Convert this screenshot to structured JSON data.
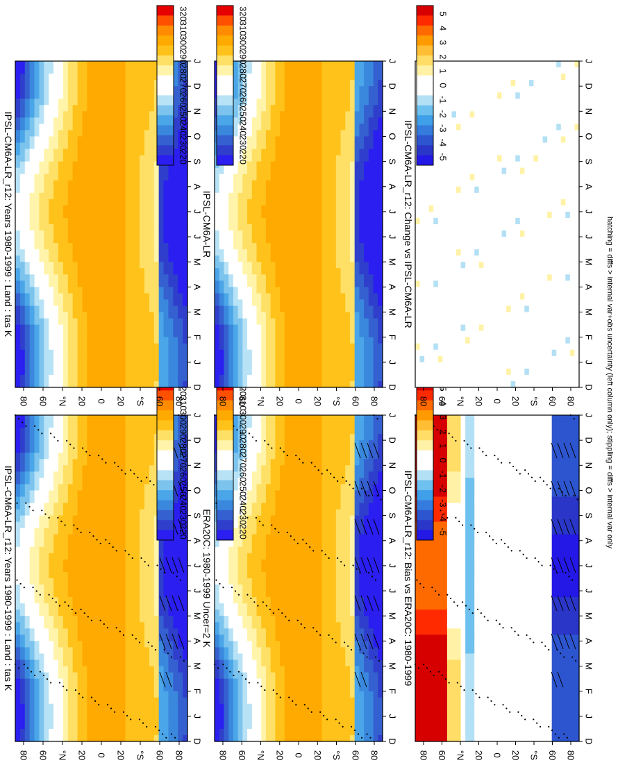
{
  "figure": {
    "footnote": "hatching = diffs > internal var+obs uncertainty (left column only); stippling = diffs > internal var only"
  },
  "chart_data": [
    {
      "id": "model-left",
      "type": "heatmap",
      "title": "IPSL-CM6A-LR_r12: Years 1980-1999 : Land : tas K",
      "x": [
        "D",
        "J",
        "F",
        "M",
        "A",
        "M",
        "J",
        "J",
        "A",
        "S",
        "O",
        "N",
        "D",
        "J"
      ],
      "y": [
        "80",
        "60",
        "°N",
        "20",
        "0",
        "20",
        "°S",
        "60",
        "80"
      ],
      "colorbar_levels": [
        "320",
        "310",
        "300",
        "290",
        "280",
        "270",
        "260",
        "250",
        "240",
        "230",
        "220"
      ],
      "hatching": true,
      "stippling": true
    },
    {
      "id": "model-right",
      "type": "heatmap",
      "title": "IPSL-CM6A-LR_r12: Years 1980-1999 : Land : tas K",
      "x": [
        "D",
        "J",
        "F",
        "M",
        "A",
        "M",
        "J",
        "J",
        "A",
        "S",
        "O",
        "N",
        "D",
        "J"
      ],
      "y": [
        "80",
        "60",
        "°N",
        "20",
        "0",
        "20",
        "°S",
        "60",
        "80"
      ],
      "colorbar_levels": [
        "320",
        "310",
        "300",
        "290",
        "280",
        "270",
        "260",
        "250",
        "240",
        "230",
        "220"
      ],
      "hatching": false,
      "stippling": false
    },
    {
      "id": "obs-left",
      "type": "heatmap",
      "title": "ERA20C: 1980-1999 Uncer=2 K",
      "x": [
        "D",
        "J",
        "F",
        "M",
        "A",
        "M",
        "J",
        "J",
        "A",
        "S",
        "O",
        "N",
        "D",
        "J"
      ],
      "y": [
        "80",
        "60",
        "°N",
        "20",
        "0",
        "20",
        "°S",
        "60",
        "80"
      ],
      "colorbar_levels": [
        "320",
        "310",
        "300",
        "290",
        "280",
        "270",
        "260",
        "250",
        "240",
        "230",
        "220"
      ],
      "hatching": true,
      "stippling": true
    },
    {
      "id": "ref-right",
      "type": "heatmap",
      "title": "IPSL-CM6A-LR",
      "x": [
        "D",
        "J",
        "F",
        "M",
        "A",
        "M",
        "J",
        "J",
        "A",
        "S",
        "O",
        "N",
        "D",
        "J"
      ],
      "y": [
        "80",
        "60",
        "°N",
        "20",
        "0",
        "20",
        "°S",
        "60",
        "80"
      ],
      "colorbar_levels": [
        "320",
        "310",
        "300",
        "290",
        "280",
        "270",
        "260",
        "250",
        "240",
        "230",
        "220"
      ],
      "hatching": false,
      "stippling": false
    },
    {
      "id": "bias-left",
      "type": "heatmap",
      "title": "IPSL-CM6A-LR_r12: Bias vs ERA20C: 1980-1999",
      "x": [
        "D",
        "J",
        "F",
        "M",
        "A",
        "M",
        "J",
        "J",
        "A",
        "S",
        "O",
        "N",
        "D",
        "J"
      ],
      "y": [
        "80",
        "60",
        "°N",
        "20",
        "0",
        "20",
        "°S",
        "60",
        "80"
      ],
      "colorbar_levels": [
        "5",
        "4",
        "3",
        "2",
        "1",
        "0",
        "-1",
        "-2",
        "-3",
        "-4",
        "-5"
      ],
      "hatching": true,
      "stippling": true
    },
    {
      "id": "change-right",
      "type": "heatmap",
      "title": "IPSL-CM6A-LR_r12: Change vs IPSL-CM6A-LR",
      "x": [
        "D",
        "J",
        "F",
        "M",
        "A",
        "M",
        "J",
        "J",
        "A",
        "S",
        "O",
        "N",
        "D",
        "J"
      ],
      "y": [
        "80",
        "60",
        "°N",
        "20",
        "0",
        "20",
        "°S",
        "60",
        "80"
      ],
      "colorbar_levels": [
        "5",
        "4",
        "3",
        "2",
        "1",
        "0",
        "-1",
        "-2",
        "-3",
        "-4",
        "-5"
      ],
      "hatching": false,
      "stippling": false
    }
  ],
  "palettes": {
    "absolute": [
      "#e60000",
      "#ff5000",
      "#ff8c00",
      "#ffaa00",
      "#ffc21a",
      "#ffe066",
      "#fff4aa",
      "#ffffff",
      "#ffffff",
      "#b8e2f5",
      "#7cc4ee",
      "#4aa6e8",
      "#3a88dd",
      "#3560d0",
      "#2f3fcc",
      "#2a1ef0"
    ],
    "diff": [
      "#d70000",
      "#ff2a00",
      "#ff6a00",
      "#ff9a00",
      "#ffbe33",
      "#ffdd66",
      "#fff2a6",
      "#ffffff",
      "#ffffff",
      "#b3e0f5",
      "#6ec0ee",
      "#3f9fe8",
      "#347bdd",
      "#2d55cf",
      "#2a36c8",
      "#2418e6"
    ]
  }
}
